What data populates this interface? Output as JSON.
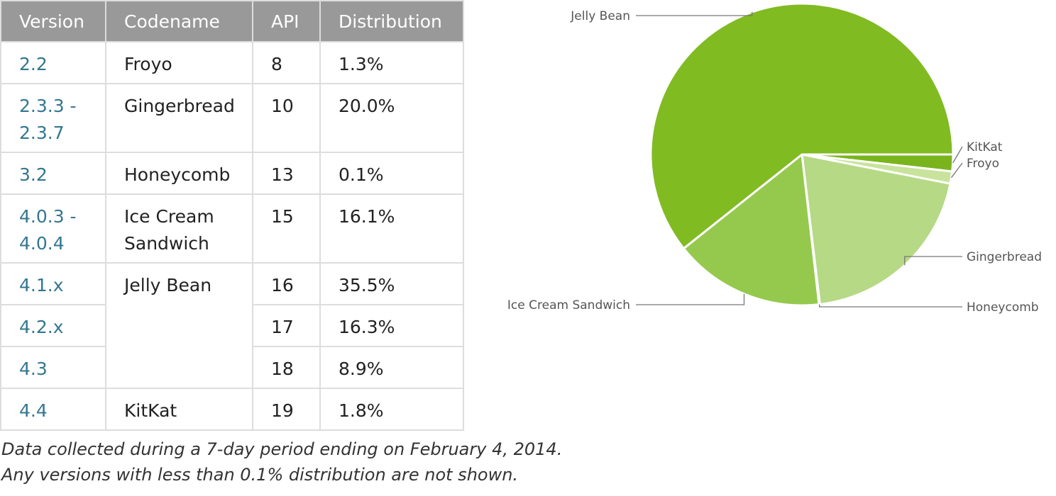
{
  "table": {
    "headers": [
      "Version",
      "Codename",
      "API",
      "Distribution"
    ],
    "rows": [
      {
        "version": "2.2",
        "codename": "Froyo",
        "api": "8",
        "distribution": "1.3%"
      },
      {
        "version": "2.3.3 - 2.3.7",
        "codename": "Gingerbread",
        "api": "10",
        "distribution": "20.0%"
      },
      {
        "version": "3.2",
        "codename": "Honeycomb",
        "api": "13",
        "distribution": "0.1%"
      },
      {
        "version": "4.0.3 - 4.0.4",
        "codename": "Ice Cream Sandwich",
        "api": "15",
        "distribution": "16.1%"
      },
      {
        "version": "4.1.x",
        "codename": "Jelly Bean",
        "api": "16",
        "distribution": "35.5%"
      },
      {
        "version": "4.2.x",
        "codename": "",
        "api": "17",
        "distribution": "16.3%"
      },
      {
        "version": "4.3",
        "codename": "",
        "api": "18",
        "distribution": "8.9%"
      },
      {
        "version": "4.4",
        "codename": "KitKat",
        "api": "19",
        "distribution": "1.8%"
      }
    ]
  },
  "footnotes": [
    "Data collected during a 7-day period ending on February 4, 2014.",
    "Any versions with less than 0.1% distribution are not shown."
  ],
  "chart_data": {
    "type": "pie",
    "categories": [
      "KitKat",
      "Froyo",
      "Gingerbread",
      "Honeycomb",
      "Ice Cream Sandwich",
      "Jelly Bean"
    ],
    "values": [
      1.8,
      1.3,
      20.0,
      0.1,
      16.1,
      60.7
    ],
    "colors": [
      "#7ab41d",
      "#c8e39c",
      "#b5d985",
      "#a6d26c",
      "#95c94d",
      "#80bb22"
    ],
    "label_sides": [
      "right",
      "right",
      "right",
      "right",
      "left",
      "left"
    ],
    "start_angle_degrees": 90,
    "direction": "clockwise"
  }
}
